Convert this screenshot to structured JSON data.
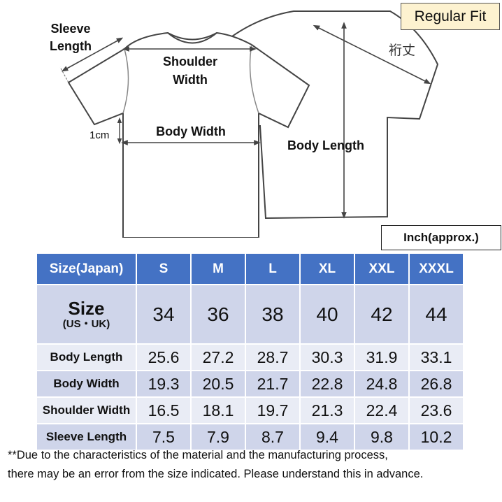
{
  "fit_badge": "Regular Fit",
  "unit_badge": "Inch(approx.)",
  "diagram": {
    "sleeve_length_line1": "Sleeve",
    "sleeve_length_line2": "Length",
    "shoulder_width_line1": "Shoulder",
    "shoulder_width_line2": "Width",
    "body_width": "Body Width",
    "body_length": "Body Length",
    "offset": "1cm",
    "japanese_length": "裄丈"
  },
  "table": {
    "header": [
      "Size(Japan)",
      "S",
      "M",
      "L",
      "XL",
      "XXL",
      "XXXL"
    ],
    "size_row": {
      "label_main": "Size",
      "label_sub": "(US・UK)",
      "values": [
        "34",
        "36",
        "38",
        "40",
        "42",
        "44"
      ]
    },
    "rows": [
      {
        "label": "Body Length",
        "values": [
          "25.6",
          "27.2",
          "28.7",
          "30.3",
          "31.9",
          "33.1"
        ]
      },
      {
        "label": "Body Width",
        "values": [
          "19.3",
          "20.5",
          "21.7",
          "22.8",
          "24.8",
          "26.8"
        ]
      },
      {
        "label": "Shoulder Width",
        "values": [
          "16.5",
          "18.1",
          "19.7",
          "21.3",
          "22.4",
          "23.6"
        ]
      },
      {
        "label": "Sleeve Length",
        "values": [
          "7.5",
          "7.9",
          "8.7",
          "9.4",
          "9.8",
          "10.2"
        ]
      }
    ]
  },
  "note": {
    "line1": "**Due to the characteristics of the material and the manufacturing process,",
    "line2": "there may be an error from the size indicated. Please understand this in advance."
  }
}
